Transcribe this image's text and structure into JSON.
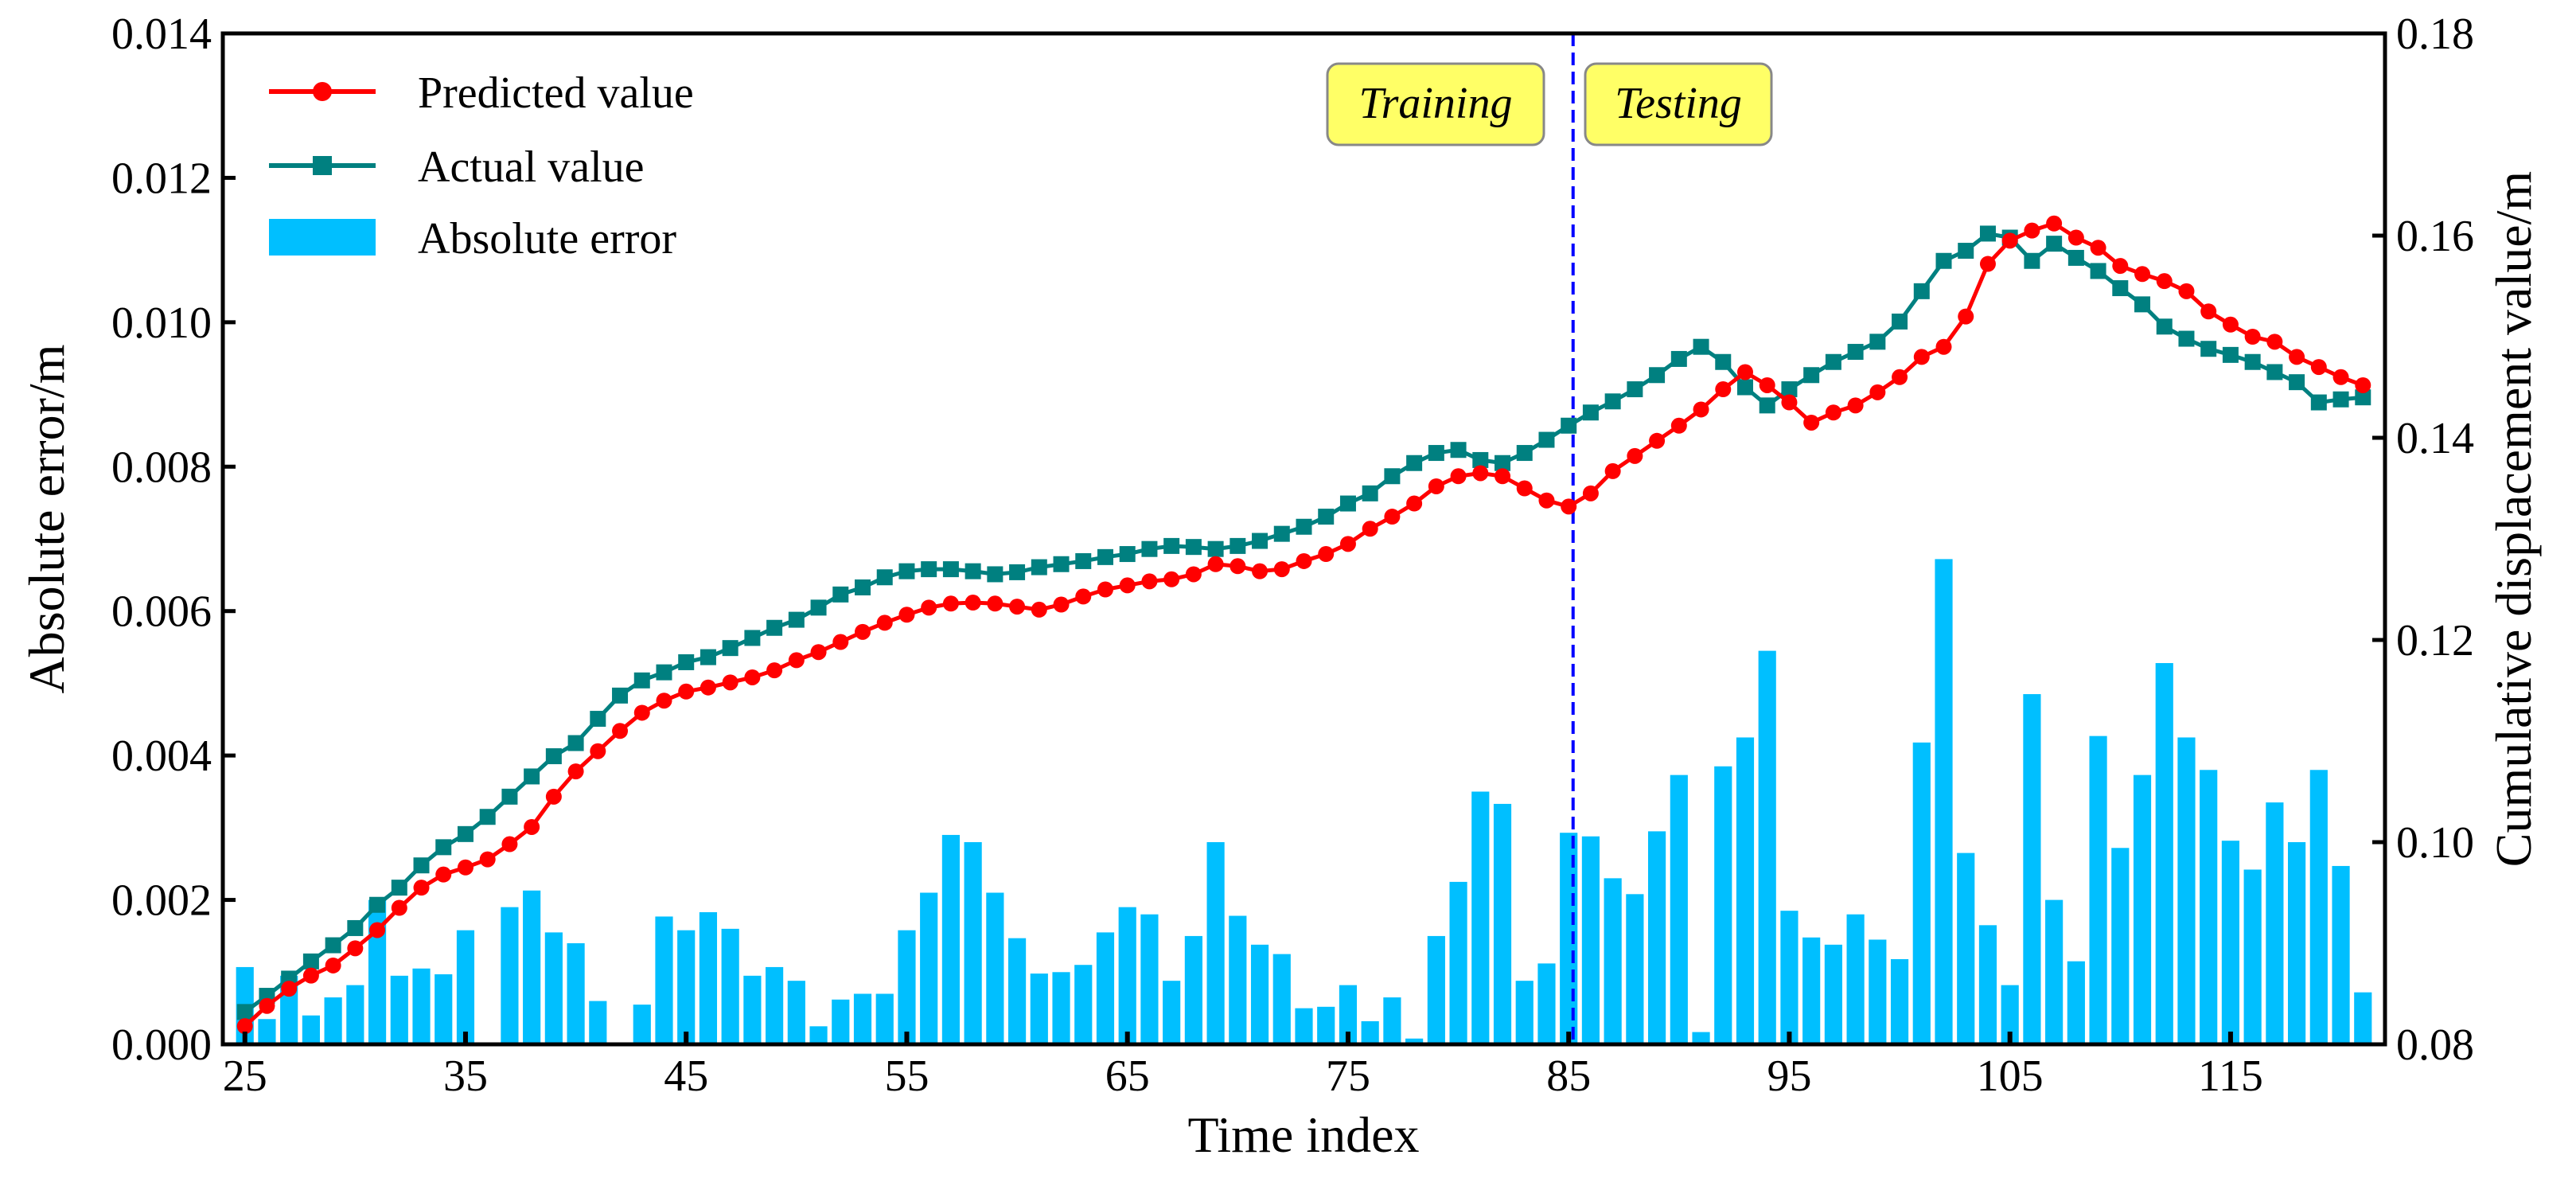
{
  "chart_data": {
    "type": "bar+line",
    "xlabel": "Time index",
    "ylabel_left": "Absolute error/m",
    "ylabel_right": "Cumulative displacement value/m",
    "xlim": [
      24,
      122
    ],
    "ylim_left": [
      0,
      0.014
    ],
    "ylim_right": [
      0.08,
      0.18
    ],
    "x_ticks": [
      25,
      35,
      45,
      55,
      65,
      75,
      85,
      95,
      105,
      115
    ],
    "y_ticks_left": [
      "0.000",
      "0.002",
      "0.004",
      "0.006",
      "0.008",
      "0.010",
      "0.012",
      "0.014"
    ],
    "y_ticks_right": [
      "0.08",
      "0.10",
      "0.12",
      "0.14",
      "0.16",
      "0.18"
    ],
    "split_index": 85.2,
    "phase_labels": {
      "training": "Training",
      "testing": "Testing"
    },
    "legend": {
      "position": "top-left",
      "entries": [
        "Predicted value",
        "Actual value",
        "Absolute error"
      ]
    },
    "colors": {
      "predicted": "#ff0000",
      "actual": "#008080",
      "bars": "#00bfff",
      "split_line": "#0000ff",
      "phase_box": "#ffff66"
    },
    "x": [
      25,
      26,
      27,
      28,
      29,
      30,
      31,
      32,
      33,
      34,
      35,
      36,
      37,
      38,
      39,
      40,
      41,
      42,
      43,
      44,
      45,
      46,
      47,
      48,
      49,
      50,
      51,
      52,
      53,
      54,
      55,
      56,
      57,
      58,
      59,
      60,
      61,
      62,
      63,
      64,
      65,
      66,
      67,
      68,
      69,
      70,
      71,
      72,
      73,
      74,
      75,
      76,
      77,
      78,
      79,
      80,
      81,
      82,
      83,
      84,
      85,
      86,
      87,
      88,
      89,
      90,
      91,
      92,
      93,
      94,
      95,
      96,
      97,
      98,
      99,
      100,
      101,
      102,
      103,
      104,
      105,
      106,
      107,
      108,
      109,
      110,
      111,
      112,
      113,
      114,
      115,
      116,
      117,
      118,
      119,
      120,
      121
    ],
    "series": [
      {
        "name": "Absolute error",
        "axis": "left",
        "values": [
          0.00107,
          0.00035,
          0.00095,
          0.0004,
          0.00065,
          0.00082,
          0.002,
          0.00095,
          0.00105,
          0.00097,
          0.00158,
          0.0,
          0.0019,
          0.00213,
          0.00155,
          0.0014,
          0.0006,
          0.0,
          0.00055,
          0.00177,
          0.00158,
          0.00183,
          0.0016,
          0.00095,
          0.00107,
          0.00088,
          0.00025,
          0.00062,
          0.0007,
          0.0007,
          0.00158,
          0.0021,
          0.0029,
          0.0028,
          0.0021,
          0.00147,
          0.00098,
          0.001,
          0.0011,
          0.00155,
          0.0019,
          0.0018,
          0.00088,
          0.0015,
          0.0028,
          0.00178,
          0.00138,
          0.00125,
          0.0005,
          0.00052,
          0.00082,
          0.00032,
          0.00065,
          8e-05,
          0.0015,
          0.00225,
          0.0035,
          0.00333,
          0.00088,
          0.00112,
          0.00293,
          0.00288,
          0.0023,
          0.00208,
          0.00295,
          0.00373,
          0.00017,
          0.00385,
          0.00425,
          0.00545,
          0.00185,
          0.00148,
          0.00138,
          0.0018,
          0.00145,
          0.00118,
          0.00418,
          0.00672,
          0.00265,
          0.00165,
          0.00082,
          0.00485,
          0.002,
          0.00115,
          0.00427,
          0.00272,
          0.00373,
          0.00528,
          0.00425,
          0.0038,
          0.00282,
          0.00242,
          0.00335,
          0.0028,
          0.0038,
          0.00247,
          0.00072
        ]
      },
      {
        "name": "Predicted value",
        "axis": "right",
        "values": [
          0.0818,
          0.0838,
          0.0855,
          0.0868,
          0.0878,
          0.0895,
          0.0913,
          0.0935,
          0.0955,
          0.0968,
          0.0975,
          0.0983,
          0.0998,
          0.1015,
          0.1045,
          0.107,
          0.109,
          0.111,
          0.1128,
          0.114,
          0.1149,
          0.1153,
          0.1158,
          0.1163,
          0.117,
          0.118,
          0.1188,
          0.1198,
          0.1208,
          0.1217,
          0.1225,
          0.1232,
          0.1236,
          0.1237,
          0.1236,
          0.1233,
          0.123,
          0.1235,
          0.1243,
          0.125,
          0.1254,
          0.1258,
          0.126,
          0.1265,
          0.1275,
          0.1273,
          0.1268,
          0.127,
          0.1278,
          0.1285,
          0.1295,
          0.131,
          0.1322,
          0.1335,
          0.1352,
          0.1362,
          0.1365,
          0.1362,
          0.135,
          0.1338,
          0.1332,
          0.1345,
          0.1367,
          0.1382,
          0.1397,
          0.1412,
          0.1428,
          0.1448,
          0.1465,
          0.1452,
          0.1435,
          0.1415,
          0.1425,
          0.1432,
          0.1445,
          0.146,
          0.148,
          0.149,
          0.152,
          0.1572,
          0.1595,
          0.1605,
          0.1612,
          0.1598,
          0.1588,
          0.157,
          0.1562,
          0.1555,
          0.1545,
          0.1525,
          0.1512,
          0.15,
          0.1495,
          0.148,
          0.147,
          0.146,
          0.1452
        ]
      },
      {
        "name": "Actual value",
        "axis": "right",
        "values": [
          0.0832,
          0.0848,
          0.0865,
          0.0882,
          0.0898,
          0.0915,
          0.0938,
          0.0955,
          0.0977,
          0.0995,
          0.1008,
          0.1025,
          0.1045,
          0.1065,
          0.1085,
          0.1098,
          0.1122,
          0.1145,
          0.116,
          0.1168,
          0.1178,
          0.1183,
          0.1192,
          0.1202,
          0.1212,
          0.122,
          0.1232,
          0.1245,
          0.1252,
          0.1262,
          0.1268,
          0.127,
          0.127,
          0.1268,
          0.1265,
          0.1267,
          0.1272,
          0.1275,
          0.1278,
          0.1282,
          0.1285,
          0.129,
          0.1293,
          0.1292,
          0.129,
          0.1293,
          0.1298,
          0.1305,
          0.1312,
          0.1322,
          0.1335,
          0.1345,
          0.1362,
          0.1375,
          0.1385,
          0.1388,
          0.1378,
          0.1375,
          0.1385,
          0.1398,
          0.1412,
          0.1425,
          0.1436,
          0.1448,
          0.1462,
          0.1478,
          0.149,
          0.1475,
          0.145,
          0.1432,
          0.1448,
          0.1462,
          0.1475,
          0.1485,
          0.1495,
          0.1515,
          0.1545,
          0.1575,
          0.1585,
          0.1602,
          0.1598,
          0.1575,
          0.1592,
          0.1578,
          0.1565,
          0.1548,
          0.1532,
          0.151,
          0.1498,
          0.1488,
          0.1482,
          0.1475,
          0.1465,
          0.1455,
          0.1435,
          0.1438,
          0.144
        ]
      }
    ]
  }
}
